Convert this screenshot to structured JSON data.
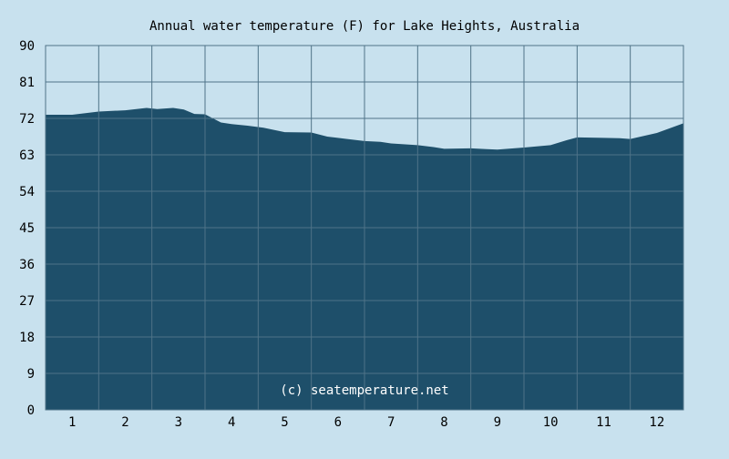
{
  "colors": {
    "background": "#c8e1ee",
    "area": "#1e4f6a",
    "grid": "#4f7388",
    "text": "#000000",
    "watermark": "#ffffff"
  },
  "chart_data": {
    "type": "area",
    "title": "Annual water temperature (F) for Lake Heights, Australia",
    "xlabel": "",
    "ylabel": "",
    "watermark": "(c) seatemperature.net",
    "ylim": [
      0,
      90
    ],
    "y_ticks": [
      "0",
      "9",
      "18",
      "27",
      "36",
      "45",
      "54",
      "63",
      "72",
      "81",
      "90"
    ],
    "x_ticks": [
      "1",
      "2",
      "3",
      "4",
      "5",
      "6",
      "7",
      "8",
      "9",
      "10",
      "11",
      "12"
    ],
    "xlim": [
      0.5,
      12.5
    ],
    "grid": true,
    "legend": "none",
    "series": [
      {
        "x": [
          0.5,
          1.0,
          1.5,
          2.0,
          2.4,
          2.6,
          2.9,
          3.1,
          3.3,
          3.5,
          3.8,
          4.0,
          4.3,
          4.6,
          5.0,
          5.5,
          5.8,
          6.0,
          6.5,
          6.8,
          7.0,
          7.5,
          7.8,
          8.0,
          8.5,
          8.8,
          9.0,
          9.5,
          10.0,
          10.3,
          10.5,
          11.0,
          11.3,
          11.5,
          12.0,
          12.5
        ],
        "y": [
          72.9,
          72.9,
          73.7,
          74.0,
          74.6,
          74.3,
          74.6,
          74.2,
          73.1,
          73.0,
          71.0,
          70.6,
          70.2,
          69.7,
          68.6,
          68.5,
          67.5,
          67.2,
          66.4,
          66.2,
          65.8,
          65.4,
          64.9,
          64.5,
          64.6,
          64.4,
          64.3,
          64.8,
          65.4,
          66.6,
          67.3,
          67.2,
          67.1,
          66.9,
          68.4,
          70.8
        ]
      }
    ]
  }
}
